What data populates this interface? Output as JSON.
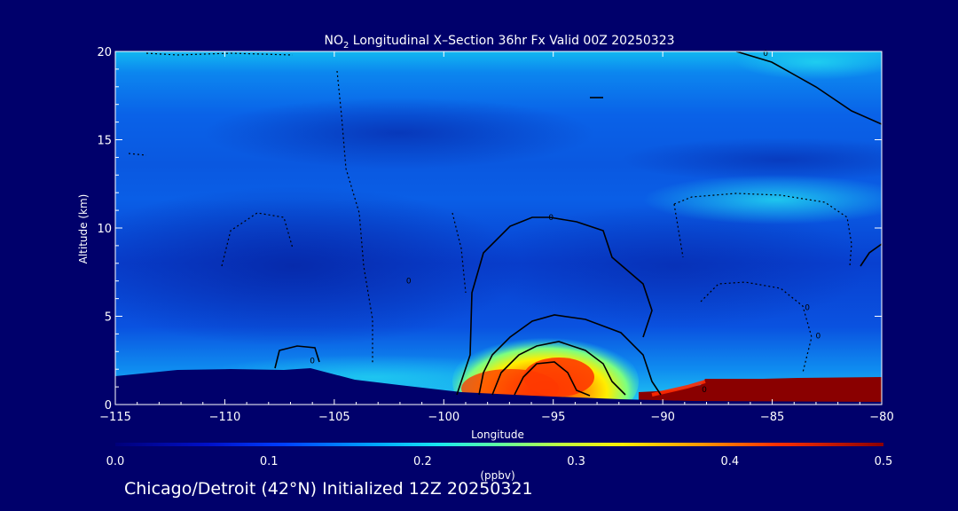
{
  "chart_data": {
    "type": "heatmap",
    "title_prefix": "NO",
    "title_sub": "2",
    "title_rest": " Longitudinal X–Section 36hr  Fx Valid 00Z 20250323",
    "xlabel": "Longitude",
    "ylabel": "Altitude (km)",
    "xlim": [
      -115,
      -80
    ],
    "ylim": [
      0,
      20
    ],
    "xticks": [
      -115,
      -110,
      -105,
      -100,
      -95,
      -90,
      -85,
      -80
    ],
    "xtick_labels": [
      "−115",
      "−110",
      "−105",
      "−100",
      "−95",
      "−90",
      "−85",
      "−80"
    ],
    "yticks": [
      0,
      5,
      10,
      15,
      20
    ],
    "ytick_labels": [
      "0",
      "5",
      "10",
      "15",
      "20"
    ],
    "colorbar": {
      "label": "(ppbv)",
      "range": [
        0.0,
        0.5
      ],
      "ticks": [
        0.0,
        0.1,
        0.2,
        0.3,
        0.4,
        0.5
      ],
      "tick_labels": [
        "0.0",
        "0.1",
        "0.2",
        "0.3",
        "0.4",
        "0.5"
      ]
    },
    "contour_labels": [
      {
        "x": -85.3,
        "y": 19.9,
        "text": "0"
      },
      {
        "x": -95.1,
        "y": 10.6,
        "text": "0"
      },
      {
        "x": -106.0,
        "y": 2.5,
        "text": "0"
      },
      {
        "x": -101.6,
        "y": 7.0,
        "text": "0"
      },
      {
        "x": -88.1,
        "y": 0.85,
        "text": "0"
      },
      {
        "x": -83.4,
        "y": 5.5,
        "text": "0"
      },
      {
        "x": -82.9,
        "y": 3.9,
        "text": "0"
      }
    ]
  },
  "footer": "Chicago/Detroit (42°N) Initialized 12Z 20250321"
}
